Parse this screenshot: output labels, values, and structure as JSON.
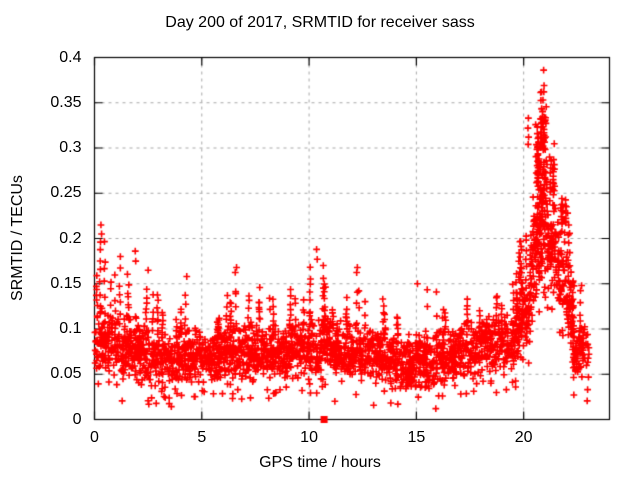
{
  "page": {
    "background": "#ffffff",
    "title": "Day 200 of 2017, SRMTID for receiver sass"
  },
  "chart_data": {
    "type": "scatter",
    "title": "Day 200 of 2017, SRMTID for receiver sass",
    "xlabel": "GPS time / hours",
    "ylabel": "SRMTID / TECUs",
    "xlim": [
      0,
      24
    ],
    "ylim": [
      0,
      0.4
    ],
    "xtick_values": [
      0,
      5,
      10,
      15,
      20
    ],
    "xtick_labels": [
      "0",
      "5",
      "10",
      "15",
      "20"
    ],
    "ytick_values": [
      0,
      0.05,
      0.1,
      0.15,
      0.2,
      0.25,
      0.3,
      0.35,
      0.4
    ],
    "ytick_labels": [
      "0",
      "0.05",
      "0.1",
      "0.15",
      "0.2",
      "0.25",
      "0.3",
      "0.35",
      "0.4"
    ],
    "grid": true,
    "legend": "none",
    "colors": {
      "marker": "#ff0000",
      "grid": "#a8a8a8",
      "axis": "#000000",
      "text": "#000000"
    },
    "series": [
      {
        "name": "SRMTID",
        "marker": "plus",
        "marker_size_px": 7,
        "color": "#ff0000",
        "time_span_hours": [
          0.0,
          23.05
        ],
        "typical_band_tecus": [
          0.03,
          0.13
        ],
        "peak": {
          "x": 20.93,
          "y": 0.386
        },
        "zero_marker_point": {
          "x": 10.7,
          "y": 0.0,
          "marker": "filled-square"
        },
        "notable_points": [
          [
            20.93,
            0.386
          ],
          [
            20.95,
            0.369
          ],
          [
            20.94,
            0.362
          ],
          [
            20.9,
            0.353
          ],
          [
            20.88,
            0.34
          ],
          [
            20.22,
            0.333
          ],
          [
            20.2,
            0.322
          ],
          [
            20.23,
            0.312
          ],
          [
            20.21,
            0.304
          ],
          [
            0.3,
            0.215
          ],
          [
            0.33,
            0.205
          ],
          [
            0.28,
            0.196
          ],
          [
            1.9,
            0.186
          ],
          [
            1.92,
            0.175
          ],
          [
            10.35,
            0.188
          ],
          [
            10.38,
            0.177
          ],
          [
            22.05,
            0.228
          ],
          [
            22.1,
            0.215
          ],
          [
            22.08,
            0.204
          ],
          [
            22.7,
            0.148
          ],
          [
            12.25,
            0.168
          ],
          [
            6.62,
            0.168
          ],
          [
            2.5,
            0.165
          ],
          [
            4.3,
            0.158
          ],
          [
            19.82,
            0.163
          ],
          [
            15.05,
            0.15
          ]
        ],
        "generation": {
          "seed": 20170200,
          "segment_format": [
            "hour_start",
            "hour_end",
            "count",
            "band_low",
            "band_high",
            "tail_max",
            "streak_prob"
          ],
          "segments": [
            [
              0.0,
              0.5,
              60,
              0.05,
              0.125,
              0.215,
              0.1
            ],
            [
              0.5,
              1.0,
              60,
              0.045,
              0.12,
              0.19,
              0.07
            ],
            [
              1.0,
              2.0,
              115,
              0.04,
              0.115,
              0.185,
              0.06
            ],
            [
              2.0,
              3.0,
              115,
              0.035,
              0.11,
              0.165,
              0.05
            ],
            [
              3.0,
              4.0,
              115,
              0.03,
              0.1,
              0.135,
              0.04
            ],
            [
              4.0,
              5.0,
              115,
              0.035,
              0.105,
              0.16,
              0.04
            ],
            [
              5.0,
              6.0,
              115,
              0.04,
              0.1,
              0.13,
              0.04
            ],
            [
              6.0,
              7.0,
              115,
              0.04,
              0.11,
              0.17,
              0.05
            ],
            [
              7.0,
              8.0,
              115,
              0.04,
              0.11,
              0.16,
              0.05
            ],
            [
              8.0,
              9.0,
              115,
              0.04,
              0.105,
              0.15,
              0.04
            ],
            [
              9.0,
              10.0,
              115,
              0.04,
              0.11,
              0.15,
              0.05
            ],
            [
              10.0,
              11.0,
              115,
              0.045,
              0.12,
              0.19,
              0.06
            ],
            [
              11.0,
              12.0,
              115,
              0.04,
              0.11,
              0.15,
              0.05
            ],
            [
              12.0,
              13.0,
              115,
              0.04,
              0.105,
              0.17,
              0.05
            ],
            [
              13.0,
              14.0,
              115,
              0.035,
              0.1,
              0.15,
              0.04
            ],
            [
              14.0,
              15.0,
              115,
              0.03,
              0.095,
              0.125,
              0.04
            ],
            [
              15.0,
              16.0,
              115,
              0.03,
              0.1,
              0.15,
              0.04
            ],
            [
              16.0,
              17.0,
              115,
              0.035,
              0.105,
              0.13,
              0.04
            ],
            [
              17.0,
              18.0,
              115,
              0.04,
              0.11,
              0.14,
              0.04
            ],
            [
              18.0,
              19.0,
              115,
              0.045,
              0.115,
              0.145,
              0.04
            ],
            [
              19.0,
              19.8,
              95,
              0.05,
              0.125,
              0.165,
              0.06
            ],
            [
              19.8,
              20.4,
              75,
              0.07,
              0.155,
              0.22,
              0.15
            ],
            [
              20.4,
              20.75,
              70,
              0.12,
              0.27,
              0.345,
              0.2
            ],
            [
              20.75,
              21.1,
              80,
              0.15,
              0.31,
              0.375,
              0.25
            ],
            [
              21.1,
              21.5,
              70,
              0.13,
              0.26,
              0.32,
              0.15
            ],
            [
              21.5,
              22.0,
              60,
              0.1,
              0.225,
              0.25,
              0.1
            ],
            [
              22.0,
              22.35,
              45,
              0.08,
              0.17,
              0.225,
              0.08
            ],
            [
              22.25,
              23.05,
              90,
              0.035,
              0.115,
              0.15,
              0.05
            ]
          ]
        }
      }
    ]
  }
}
